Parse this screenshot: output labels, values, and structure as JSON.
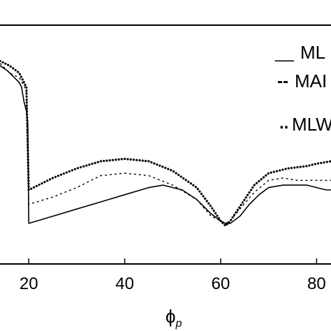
{
  "chart_data": {
    "type": "line",
    "title": "",
    "xlabel": "ϕ",
    "xlabel_sub": "p",
    "ylabel": "",
    "xlim": [
      14,
      83
    ],
    "ylim": [
      0,
      1
    ],
    "grid": false,
    "legend_placement": "top-right",
    "x_ticks": [
      {
        "value": 20,
        "label": "20"
      },
      {
        "value": 40,
        "label": "40"
      },
      {
        "value": 60,
        "label": "60"
      },
      {
        "value": 80,
        "label": "80"
      }
    ],
    "legend": [
      {
        "glyph": "__",
        "label": "ML"
      },
      {
        "glyph": "--",
        "label": "MAI"
      },
      {
        "glyph": "..",
        "label": "MLW"
      }
    ],
    "series": [
      {
        "style": "solid",
        "x": [
          14,
          15.5,
          17,
          18,
          18.5,
          19,
          19.5,
          19.8,
          20,
          25,
          30,
          35,
          40,
          45,
          48,
          52,
          55,
          58,
          60,
          61,
          62,
          64,
          66,
          68,
          70,
          73,
          76,
          78,
          80,
          82,
          83
        ],
        "y": [
          0.83,
          0.81,
          0.78,
          0.76,
          0.74,
          0.68,
          0.64,
          0.59,
          0.17,
          0.2,
          0.23,
          0.26,
          0.29,
          0.32,
          0.33,
          0.31,
          0.27,
          0.21,
          0.18,
          0.17,
          0.17,
          0.2,
          0.25,
          0.29,
          0.32,
          0.33,
          0.33,
          0.33,
          0.32,
          0.31,
          0.31
        ]
      },
      {
        "style": "dashed",
        "x": [
          14,
          16,
          18,
          19.5,
          20,
          25,
          30,
          35,
          40,
          45,
          50,
          55,
          58,
          60,
          61,
          62,
          64,
          67,
          70,
          73,
          76,
          80,
          83
        ],
        "y": [
          0.84,
          0.8,
          0.78,
          0.73,
          0.25,
          0.28,
          0.32,
          0.37,
          0.38,
          0.37,
          0.33,
          0.27,
          0.2,
          0.18,
          0.17,
          0.18,
          0.23,
          0.3,
          0.35,
          0.36,
          0.35,
          0.35,
          0.35
        ]
      },
      {
        "style": "dotted",
        "x": [
          14,
          16,
          18,
          19.5,
          20,
          25,
          30,
          35,
          40,
          45,
          50,
          55,
          58,
          60,
          61,
          62,
          64,
          67,
          70,
          74,
          78,
          80,
          83
        ],
        "y": [
          0.85,
          0.83,
          0.8,
          0.74,
          0.31,
          0.36,
          0.4,
          0.43,
          0.44,
          0.43,
          0.39,
          0.32,
          0.24,
          0.18,
          0.16,
          0.18,
          0.24,
          0.33,
          0.38,
          0.4,
          0.41,
          0.42,
          0.43
        ]
      }
    ]
  }
}
